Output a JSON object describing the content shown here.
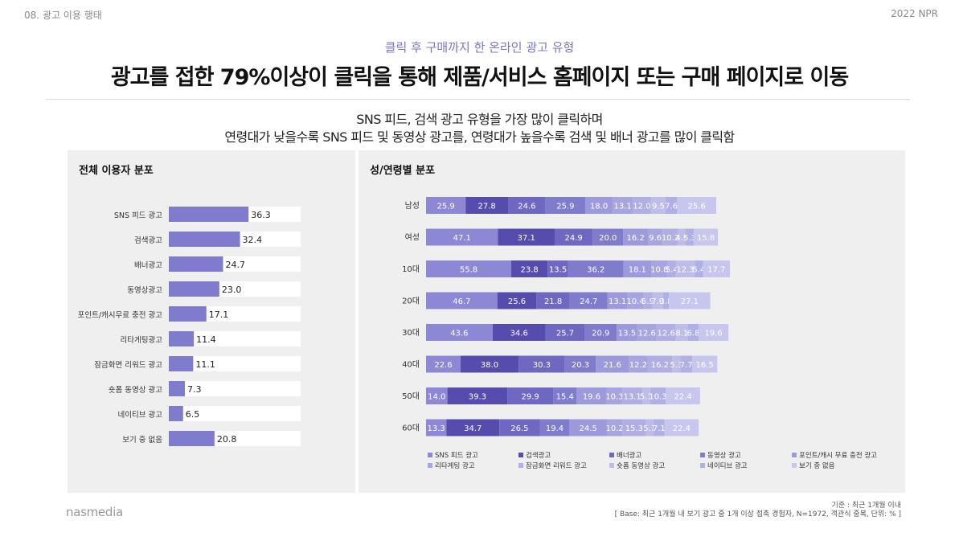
{
  "header": {
    "section": "08. 광고 이용 행태",
    "report": "2022 NPR",
    "subtitle": "클릭 후 구매까지 한 온라인 광고 유형",
    "title": "광고를 접한 79%이상이 클릭을 통해 제품/서비스 홈페이지 또는 구매 페이지로 이동",
    "summary_line1": "SNS 피드, 검색 광고 유형을 가장 많이 클릭하며",
    "summary_line2": "연령대가 낮을수록 SNS 피드 및 동영상 광고를, 연령대가 높을수록 검색 및 배너 광고를 많이 클릭함"
  },
  "footer": {
    "brand": "nasmedia",
    "basis": "기준 : 최근 1개월 이내",
    "base": "[ Base: 최근 1개월 내 보기 광고 중 1개 이상 접촉 경험자, N=1972, 객관식 중복, 단위: % ]"
  },
  "colors": {
    "left_bar": "#7f7ccd",
    "series": [
      "#8d88d6",
      "#564cae",
      "#6e68c2",
      "#7f7ccd",
      "#9c99dc",
      "#a7a5e0",
      "#b0aee4",
      "#bebdea",
      "#aeb0e6",
      "#c7c6ef"
    ]
  },
  "chart_data": [
    {
      "type": "bar",
      "orientation": "horizontal",
      "title": "전체 이용자 분포",
      "categories": [
        "SNS 피드 광고",
        "검색광고",
        "배너광고",
        "동영상광고",
        "포인트/캐시무료 충전 광고",
        "리타게팅광고",
        "잠금화면 리워드 광고",
        "숏폼 동영상 광고",
        "네이티브 광고",
        "보기 중 없음"
      ],
      "values": [
        36.3,
        32.4,
        24.7,
        23.0,
        17.1,
        11.4,
        11.1,
        7.3,
        6.5,
        20.8
      ],
      "value_labels": [
        "36.3",
        "32.4",
        "24.7",
        "23.0",
        "17.1",
        "11.4",
        "11.1",
        "7.3",
        "6.5",
        "20.8"
      ],
      "xlim": [
        0,
        60
      ]
    },
    {
      "type": "bar",
      "orientation": "horizontal",
      "stacked": true,
      "title": "성/연령별 분포",
      "categories": [
        "남성",
        "여성",
        "10대",
        "20대",
        "30대",
        "40대",
        "50대",
        "60대"
      ],
      "series": [
        {
          "name": "SNS 피드 광고",
          "values": [
            25.9,
            47.1,
            55.8,
            46.7,
            43.6,
            22.6,
            14.0,
            13.3
          ]
        },
        {
          "name": "검색광고",
          "values": [
            27.8,
            37.1,
            23.8,
            25.6,
            34.6,
            38.0,
            39.3,
            34.7
          ]
        },
        {
          "name": "배너광고",
          "values": [
            24.6,
            24.9,
            13.5,
            21.8,
            25.7,
            30.3,
            29.9,
            26.5
          ]
        },
        {
          "name": "동영상 광고",
          "values": [
            25.9,
            20.0,
            36.2,
            24.7,
            20.9,
            20.3,
            15.4,
            19.4
          ]
        },
        {
          "name": "포인트/캐시 무료 충전 광고",
          "values": [
            18.0,
            16.2,
            18.1,
            13.1,
            13.5,
            21.6,
            19.6,
            24.5
          ]
        },
        {
          "name": "리타게팅 광고",
          "values": [
            13.1,
            9.6,
            10.8,
            10.4,
            12.6,
            12.2,
            10.3,
            10.2
          ]
        },
        {
          "name": "잠금화면 리워드 광고",
          "values": [
            12.0,
            10.2,
            5.4,
            5.9,
            12.6,
            16.2,
            13.1,
            15.3
          ]
        },
        {
          "name": "숏폼 동영상 광고",
          "values": [
            9.5,
            4.9,
            12.3,
            7.0,
            8.1,
            5.3,
            5.1,
            5.1
          ]
        },
        {
          "name": "네이티브 광고",
          "values": [
            7.6,
            5.3,
            5.4,
            3.8,
            6.8,
            7.7,
            10.3,
            7.1
          ]
        },
        {
          "name": "보기 중 없음",
          "values": [
            25.6,
            15.8,
            17.7,
            27.1,
            19.6,
            16.5,
            22.4,
            22.4
          ]
        }
      ],
      "data_labels": [
        [
          "25.9",
          "27.8",
          "24.6",
          "25.9",
          "18.0",
          "13.1",
          "12.0",
          "9.5",
          "7.6",
          "25.6"
        ],
        [
          "47.1",
          "37.1",
          "24.9",
          "20.0",
          "16.2",
          "9.6",
          "10.2",
          "4.9",
          "5.3",
          "15.8"
        ],
        [
          "55.8",
          "23.8",
          "13.5",
          "36.2",
          "18.1",
          "10.8",
          "5.4",
          "12.3",
          "5.4",
          "17.7"
        ],
        [
          "46.7",
          "25.6",
          "21.8",
          "24.7",
          "13.1",
          "10.4",
          "5.9",
          "7.0",
          "3.8",
          "27.1"
        ],
        [
          "43.6",
          "34.6",
          "25.7",
          "20.9",
          "13.5",
          "12.6",
          "12.6",
          "8.1",
          "6.8",
          "19.6"
        ],
        [
          "22.6",
          "38.0",
          "30.3",
          "20.3",
          "21.6",
          "12.2",
          "16.2",
          "5.3",
          "7.7",
          "16.5"
        ],
        [
          "14.0",
          "39.3",
          "29.9",
          "15.4",
          "19.6",
          "10.3",
          "13.1",
          "5.1",
          "10.3",
          "22.4"
        ],
        [
          "13.3",
          "34.7",
          "26.5",
          "19.4",
          "24.5",
          "10.2",
          "15.3",
          "5.1",
          "7.1",
          "22.4"
        ]
      ],
      "legend": "bottom"
    }
  ]
}
